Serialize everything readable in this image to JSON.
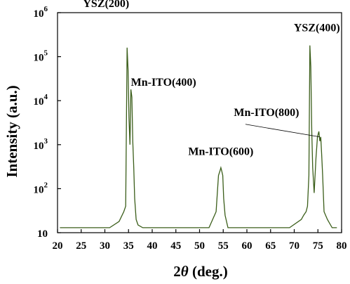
{
  "chart_data": {
    "type": "line",
    "xlabel": {
      "prefix": "2",
      "italic": "θ",
      "suffix": " (deg.)"
    },
    "ylabel": "Intensity (a.u.)",
    "xlim": [
      20,
      80
    ],
    "ylim": [
      10,
      1000000
    ],
    "y_scale": "log",
    "x_ticks": [
      20,
      25,
      30,
      35,
      40,
      45,
      50,
      55,
      60,
      65,
      70,
      75,
      80
    ],
    "y_ticks": [
      {
        "value": 10,
        "base": "10",
        "exp": ""
      },
      {
        "value": 100,
        "base": "10",
        "exp": "2"
      },
      {
        "value": 1000,
        "base": "10",
        "exp": "3"
      },
      {
        "value": 10000,
        "base": "10",
        "exp": "4"
      },
      {
        "value": 100000,
        "base": "10",
        "exp": "5"
      },
      {
        "value": 1000000,
        "base": "10",
        "exp": "6"
      }
    ],
    "line_color": "#3b5e1a",
    "series": [
      {
        "x": [
          20.5,
          20.8,
          21.2,
          22.0,
          22.6,
          23.0,
          28.0,
          28.4,
          30.0,
          31.0,
          33.0,
          34.0,
          34.4,
          34.7,
          34.9,
          35.1,
          35.3,
          35.5,
          35.7,
          35.9,
          36.1,
          36.3,
          36.6,
          37.0,
          38.0,
          46.5,
          52.0,
          53.5,
          54.0,
          54.3,
          54.5,
          54.7,
          54.9,
          55.1,
          55.4,
          56.0,
          57.5,
          62.0,
          64.0,
          65.0,
          68.5,
          69.0,
          71.5,
          72.0,
          72.5,
          72.8,
          73.1,
          73.3,
          73.5,
          73.7,
          73.9,
          74.2,
          74.6,
          74.9,
          75.2,
          75.4,
          75.6,
          75.8,
          76.0,
          76.3,
          77.0,
          78.0,
          79.0
        ],
        "y": [
          13,
          13,
          13,
          13,
          13,
          13,
          13,
          13,
          13,
          13,
          18,
          30,
          40,
          160000,
          50000,
          4000,
          1000,
          18000,
          12000,
          1200,
          300,
          60,
          20,
          15,
          13,
          13,
          13,
          30,
          200,
          250,
          300,
          250,
          200,
          60,
          25,
          13,
          13,
          13,
          13,
          13,
          13,
          13,
          20,
          25,
          30,
          40,
          200,
          180000,
          60000,
          2000,
          300,
          80,
          500,
          1500,
          2000,
          1200,
          1500,
          600,
          200,
          30,
          20,
          13,
          13
        ]
      }
    ],
    "annotations": [
      {
        "text": "YSZ(200)",
        "x": 35.0,
        "y": 160000
      },
      {
        "text": "Mn-ITO(400)",
        "x": 35.5,
        "y": 18000
      },
      {
        "text": "Mn-ITO(600)",
        "x": 54.5,
        "y": 300
      },
      {
        "text": "YSZ(400)",
        "x": 73.3,
        "y": 180000
      },
      {
        "text": "Mn-ITO(800)",
        "x": 75.4,
        "y": 1500
      }
    ]
  }
}
